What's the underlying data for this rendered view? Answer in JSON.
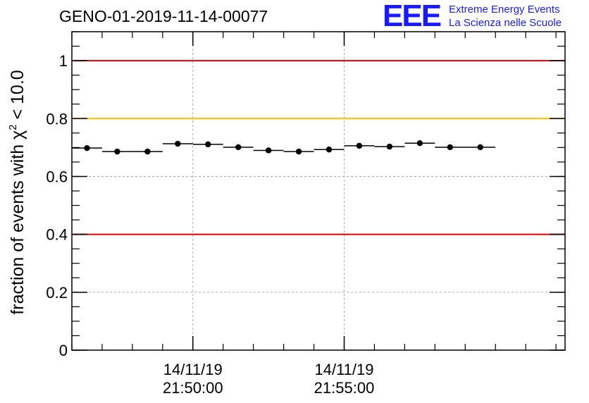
{
  "header": {
    "title": "GENO-01-2019-11-14-00077",
    "logo_letters": "EEE",
    "logo_line1": "Extreme Energy Events",
    "logo_line2": "La Scienza nelle Scuole",
    "logo_color": "#1a1aff"
  },
  "chart_data": {
    "type": "scatter",
    "title": "GENO-01-2019-11-14-00077",
    "ylabel_prefix": "fraction of events with ",
    "ylabel_symbol": "χ",
    "ylabel_sup": "2",
    "ylabel_suffix": " < 10.0",
    "xlabel": "",
    "ylim": [
      0,
      1.1
    ],
    "yticks": [
      {
        "value": 0,
        "label": "0"
      },
      {
        "value": 0.2,
        "label": "0.2"
      },
      {
        "value": 0.4,
        "label": "0.4"
      },
      {
        "value": 0.6,
        "label": "0.6"
      },
      {
        "value": 0.8,
        "label": "0.8"
      },
      {
        "value": 1.0,
        "label": "1"
      }
    ],
    "x_unit": "minutes since 21:46:00",
    "xlim": [
      0,
      16.3
    ],
    "xticks": [
      {
        "value": 4,
        "date": "14/11/19",
        "time": "21:50:00"
      },
      {
        "value": 9,
        "date": "14/11/19",
        "time": "21:55:00"
      }
    ],
    "x_minor_step": 1,
    "grid": true,
    "reference_lines": [
      {
        "y": 1.0,
        "color": "#e00000"
      },
      {
        "y": 0.8,
        "color": "#ffbf00"
      },
      {
        "y": 0.4,
        "color": "#e00000"
      }
    ],
    "series": [
      {
        "name": "fraction",
        "bin_width": 1,
        "x": [
          0.5,
          1.5,
          2.5,
          3.5,
          4.5,
          5.5,
          6.5,
          7.5,
          8.5,
          9.5,
          10.5,
          11.5,
          12.5,
          13.5
        ],
        "y": [
          0.698,
          0.686,
          0.686,
          0.713,
          0.711,
          0.701,
          0.69,
          0.686,
          0.693,
          0.706,
          0.703,
          0.715,
          0.701,
          0.701
        ]
      }
    ]
  }
}
